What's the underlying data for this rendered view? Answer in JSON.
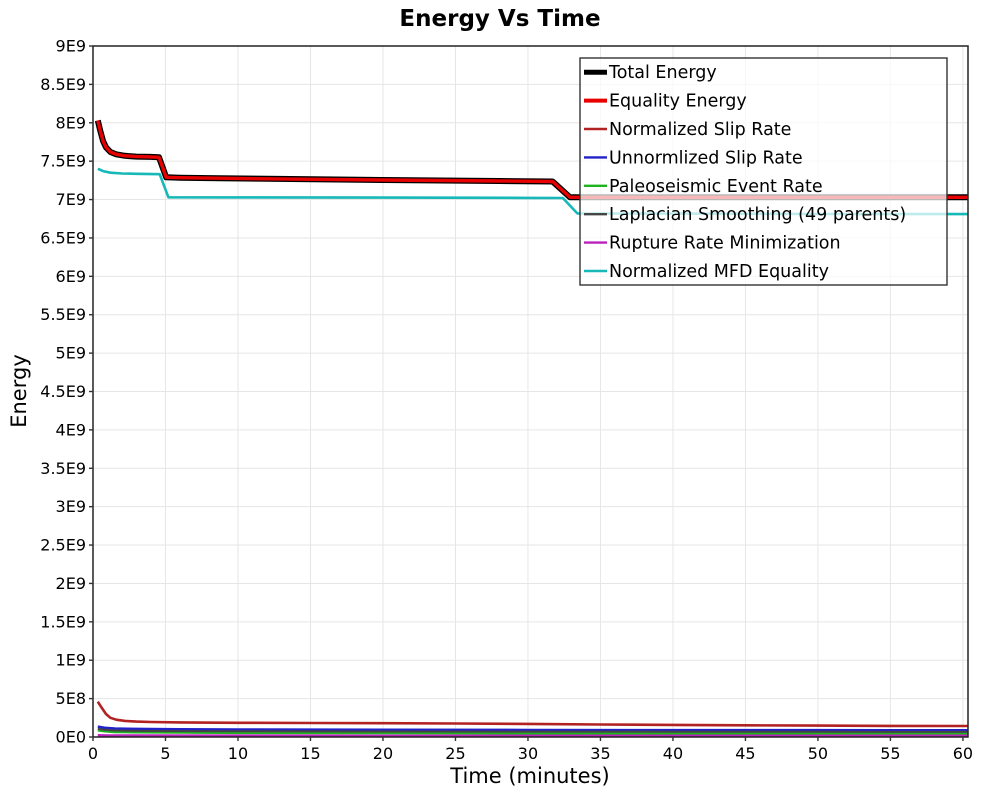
{
  "chart_data": {
    "type": "line",
    "title": "Energy Vs Time",
    "xlabel": "Time (minutes)",
    "ylabel": "Energy",
    "xlim": [
      0,
      60.35
    ],
    "ylim": [
      0,
      9000000000
    ],
    "y_unit": 1000000000,
    "grid": true,
    "x_tick_values": [
      0,
      5,
      10,
      15,
      20,
      25,
      30,
      35,
      40,
      45,
      50,
      55,
      60
    ],
    "x_tick_labels": [
      "0",
      "5",
      "10",
      "15",
      "20",
      "25",
      "30",
      "35",
      "40",
      "45",
      "50",
      "55",
      "60"
    ],
    "y_tick_values": [
      0,
      0.5,
      1,
      1.5,
      2,
      2.5,
      3,
      3.5,
      4,
      4.5,
      5,
      5.5,
      6,
      6.5,
      7,
      7.5,
      8,
      8.5,
      9
    ],
    "y_tick_labels": [
      "0E0",
      "5E8",
      "1E9",
      "1.5E9",
      "2E9",
      "2.5E9",
      "3E9",
      "3.5E9",
      "4E9",
      "4.5E9",
      "5E9",
      "5.5E9",
      "6E9",
      "6.5E9",
      "7E9",
      "7.5E9",
      "8E9",
      "8.5E9",
      "9E9"
    ],
    "legend_position": "top-right-inside",
    "colors": {
      "grid": "#e6e6e6",
      "plot_border": "#222222",
      "tick": "#333333",
      "legend_border": "#333333",
      "legend_fill": "rgba(255,255,255,0.72)"
    },
    "series": [
      {
        "name": "Total Energy",
        "color": "#000000",
        "width": 6,
        "points": [
          [
            0.33,
            8.03
          ],
          [
            0.5,
            7.9
          ],
          [
            0.7,
            7.76
          ],
          [
            0.9,
            7.68
          ],
          [
            1.2,
            7.62
          ],
          [
            1.6,
            7.59
          ],
          [
            2.2,
            7.57
          ],
          [
            3,
            7.56
          ],
          [
            4,
            7.555
          ],
          [
            4.55,
            7.55
          ],
          [
            5.05,
            7.29
          ],
          [
            6,
            7.285
          ],
          [
            8,
            7.28
          ],
          [
            12,
            7.27
          ],
          [
            16,
            7.262
          ],
          [
            20,
            7.255
          ],
          [
            24,
            7.248
          ],
          [
            28,
            7.242
          ],
          [
            31.7,
            7.235
          ],
          [
            32.9,
            7.03
          ],
          [
            36,
            7.03
          ],
          [
            40,
            7.03
          ],
          [
            45,
            7.03
          ],
          [
            50,
            7.03
          ],
          [
            55,
            7.03
          ],
          [
            60.34,
            7.03
          ]
        ]
      },
      {
        "name": "Equality Energy",
        "color": "#e80000",
        "width": 3.4,
        "points": [
          [
            0.33,
            8.03
          ],
          [
            0.5,
            7.9
          ],
          [
            0.7,
            7.76
          ],
          [
            0.9,
            7.68
          ],
          [
            1.2,
            7.62
          ],
          [
            1.6,
            7.59
          ],
          [
            2.2,
            7.57
          ],
          [
            3,
            7.56
          ],
          [
            4,
            7.555
          ],
          [
            4.55,
            7.55
          ],
          [
            5.05,
            7.29
          ],
          [
            6,
            7.285
          ],
          [
            8,
            7.28
          ],
          [
            12,
            7.27
          ],
          [
            16,
            7.262
          ],
          [
            20,
            7.255
          ],
          [
            24,
            7.248
          ],
          [
            28,
            7.242
          ],
          [
            31.7,
            7.235
          ],
          [
            32.9,
            7.03
          ],
          [
            36,
            7.03
          ],
          [
            40,
            7.03
          ],
          [
            45,
            7.03
          ],
          [
            50,
            7.03
          ],
          [
            55,
            7.03
          ],
          [
            60.34,
            7.03
          ]
        ]
      },
      {
        "name": "Normalized Slip Rate",
        "color": "#b22222",
        "width": 2.6,
        "points": [
          [
            0.33,
            0.46
          ],
          [
            0.6,
            0.38
          ],
          [
            0.9,
            0.3
          ],
          [
            1.2,
            0.25
          ],
          [
            1.6,
            0.225
          ],
          [
            2.2,
            0.21
          ],
          [
            3,
            0.2
          ],
          [
            4,
            0.195
          ],
          [
            6,
            0.19
          ],
          [
            10,
            0.185
          ],
          [
            15,
            0.182
          ],
          [
            20,
            0.18
          ],
          [
            25,
            0.176
          ],
          [
            30,
            0.17
          ],
          [
            35,
            0.163
          ],
          [
            40,
            0.158
          ],
          [
            45,
            0.152
          ],
          [
            50,
            0.148
          ],
          [
            55,
            0.145
          ],
          [
            60.34,
            0.143
          ]
        ]
      },
      {
        "name": "Unnormlized Slip Rate",
        "color": "#2222c8",
        "width": 2.6,
        "points": [
          [
            0.33,
            0.135
          ],
          [
            0.8,
            0.12
          ],
          [
            1.5,
            0.11
          ],
          [
            3,
            0.105
          ],
          [
            6,
            0.1
          ],
          [
            10,
            0.098
          ],
          [
            20,
            0.094
          ],
          [
            30,
            0.091
          ],
          [
            40,
            0.089
          ],
          [
            50,
            0.088
          ],
          [
            60.34,
            0.087
          ]
        ]
      },
      {
        "name": "Paleoseismic Event Rate",
        "color": "#1eb41e",
        "width": 2.6,
        "points": [
          [
            0.33,
            0.088
          ],
          [
            0.8,
            0.075
          ],
          [
            1.5,
            0.067
          ],
          [
            3,
            0.062
          ],
          [
            6,
            0.058
          ],
          [
            10,
            0.055
          ],
          [
            20,
            0.052
          ],
          [
            30,
            0.05
          ],
          [
            40,
            0.049
          ],
          [
            50,
            0.048
          ],
          [
            60.34,
            0.047
          ]
        ]
      },
      {
        "name": "Laplacian Smoothing (49 parents)",
        "color": "#454545",
        "width": 2,
        "points": [
          [
            0.33,
            0.105
          ],
          [
            0.8,
            0.092
          ],
          [
            1.5,
            0.085
          ],
          [
            3,
            0.08
          ],
          [
            6,
            0.077
          ],
          [
            10,
            0.075
          ],
          [
            20,
            0.072
          ],
          [
            30,
            0.07
          ],
          [
            40,
            0.069
          ],
          [
            50,
            0.068
          ],
          [
            60.34,
            0.067
          ]
        ]
      },
      {
        "name": "Rupture Rate Minimization",
        "color": "#bb22bb",
        "width": 2.6,
        "points": [
          [
            0.33,
            0.022
          ],
          [
            1,
            0.019
          ],
          [
            3,
            0.018
          ],
          [
            10,
            0.017
          ],
          [
            20,
            0.016
          ],
          [
            30,
            0.016
          ],
          [
            40,
            0.0155
          ],
          [
            50,
            0.015
          ],
          [
            60.34,
            0.015
          ]
        ]
      },
      {
        "name": "Normalized MFD Equality",
        "color": "#16b8b8",
        "width": 2.6,
        "points": [
          [
            0.33,
            7.4
          ],
          [
            0.7,
            7.37
          ],
          [
            1.2,
            7.35
          ],
          [
            2,
            7.34
          ],
          [
            3,
            7.335
          ],
          [
            4.6,
            7.33
          ],
          [
            5.2,
            7.03
          ],
          [
            10,
            7.028
          ],
          [
            20,
            7.025
          ],
          [
            30,
            7.022
          ],
          [
            32.4,
            7.02
          ],
          [
            33.4,
            6.82
          ],
          [
            40,
            6.817
          ],
          [
            50,
            6.812
          ],
          [
            60.34,
            6.81
          ]
        ]
      }
    ]
  }
}
